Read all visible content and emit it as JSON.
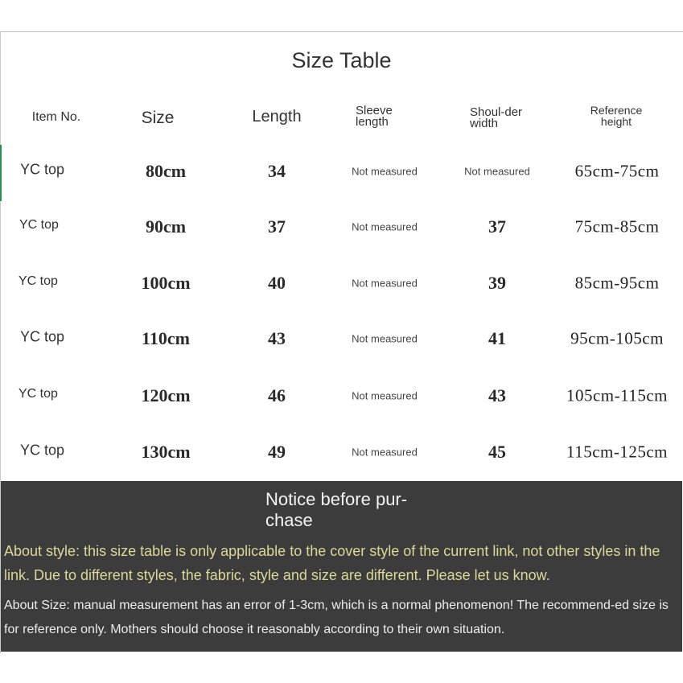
{
  "title": "Size Table",
  "headers": [
    "Item No.",
    "Size",
    "Length",
    "Sleeve length",
    "Shoul-der width",
    "Reference height"
  ],
  "rows": [
    {
      "item": "YC top",
      "size": "80cm",
      "length": "34",
      "sleeve": "Not measured",
      "shoulder": "Not measured",
      "height": "65cm-75cm"
    },
    {
      "item": "YC top",
      "size": "90cm",
      "length": "37",
      "sleeve": "Not measured",
      "shoulder": "37",
      "height": "75cm-85cm"
    },
    {
      "item": "YC top",
      "size": "100cm",
      "length": "40",
      "sleeve": "Not measured",
      "shoulder": "39",
      "height": "85cm-95cm"
    },
    {
      "item": "YC top",
      "size": "110cm",
      "length": "43",
      "sleeve": "Not measured",
      "shoulder": "41",
      "height": "95cm-105cm"
    },
    {
      "item": "YC top",
      "size": "120cm",
      "length": "46",
      "sleeve": "Not measured",
      "shoulder": "43",
      "height": "105cm-115cm"
    },
    {
      "item": "YC top",
      "size": "130cm",
      "length": "49",
      "sleeve": "Not measured",
      "shoulder": "45",
      "height": "115cm-125cm"
    }
  ],
  "notice": {
    "title": "Notice before pur-chase",
    "style_note": "About style: this size table is only applicable to the cover style of the current link, not other styles in the link. Due to different styles, the fabric, style and size are different. Please let us know.",
    "size_note": "About Size: manual measurement has an error of 1-3cm, which is a normal phenomenon! The recommend-ed size is for reference only. Mothers should choose it reasonably according to their own situation."
  },
  "colors": {
    "notice_bg": "#3c3c3c",
    "style_note": "#dcd89a",
    "accent_line": "#2e8b57"
  }
}
